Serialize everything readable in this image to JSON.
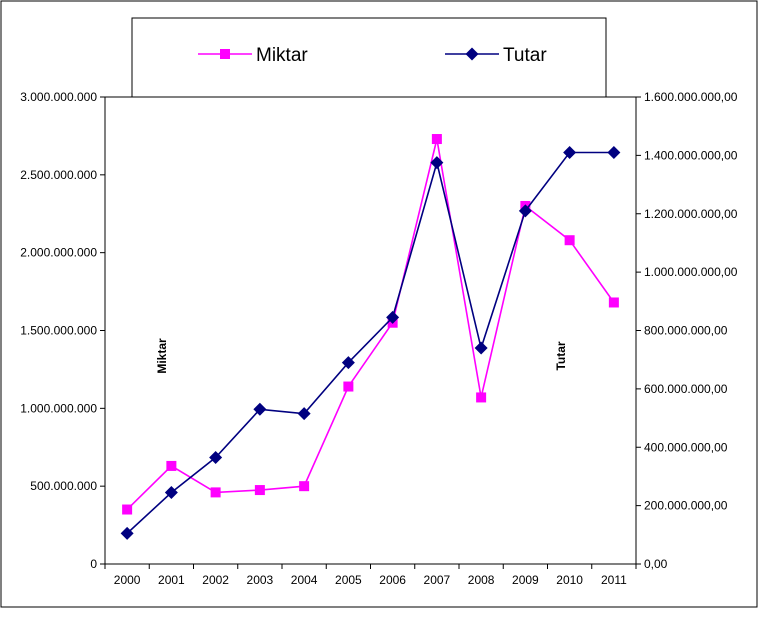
{
  "chart_data": {
    "type": "line",
    "categories": [
      "2000",
      "2001",
      "2002",
      "2003",
      "2004",
      "2005",
      "2006",
      "2007",
      "2008",
      "2009",
      "2010",
      "2011"
    ],
    "series": [
      {
        "name": "Miktar",
        "axis": "left",
        "color": "#ff00ff",
        "marker": "square",
        "values": [
          350000000,
          630000000,
          460000000,
          475000000,
          500000000,
          1140000000,
          1550000000,
          2730000000,
          1070000000,
          2300000000,
          2080000000,
          1680000000
        ]
      },
      {
        "name": "Tutar",
        "axis": "right",
        "color": "#000080",
        "marker": "diamond",
        "values": [
          105000000,
          245000000,
          365000000,
          530000000,
          515000000,
          690000000,
          845000000,
          1375000000,
          740000000,
          1210000000,
          1410000000,
          1410000000
        ]
      }
    ],
    "y_left": {
      "label": "Miktar",
      "range": [
        0,
        3000000000
      ],
      "ticks": [
        0,
        500000000,
        1000000000,
        1500000000,
        2000000000,
        2500000000,
        3000000000
      ],
      "tick_labels": [
        "0",
        "500.000.000",
        "1.000.000.000",
        "1.500.000.000",
        "2.000.000.000",
        "2.500.000.000",
        "3.000.000.000"
      ]
    },
    "y_right": {
      "label": "Tutar",
      "range": [
        0,
        1600000000
      ],
      "ticks": [
        0,
        200000000,
        400000000,
        600000000,
        800000000,
        1000000000,
        1200000000,
        1400000000,
        1600000000
      ],
      "tick_labels": [
        "0,00",
        "200.000.000,00",
        "400.000.000,00",
        "600.000.000,00",
        "800.000.000,00",
        "1.000.000.000,00",
        "1.200.000.000,00",
        "1.400.000.000,00",
        "1.600.000.000,00"
      ]
    },
    "legend": {
      "placement": "top",
      "entries": [
        "Miktar",
        "Tutar"
      ]
    },
    "grid": false
  }
}
